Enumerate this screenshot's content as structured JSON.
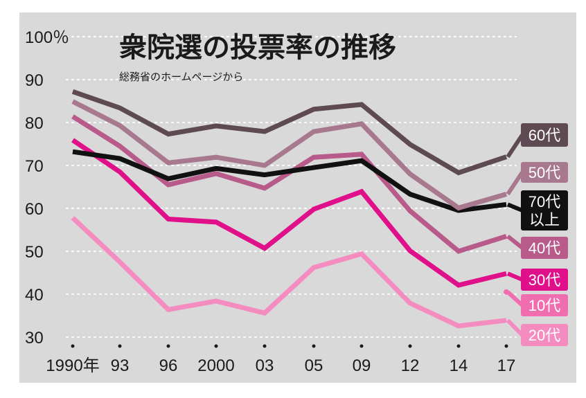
{
  "chart_data": {
    "type": "line",
    "title": "衆院選の投票率の推移",
    "subtitle": "総務省のホームページから",
    "x_tick_labels": [
      "1990年",
      "93",
      "96",
      "2000",
      "03",
      "05",
      "09",
      "12",
      "14",
      "17"
    ],
    "y_tick_labels": [
      "100％",
      "90",
      "80",
      "70",
      "60",
      "50",
      "40",
      "30"
    ],
    "ylim": [
      30,
      100
    ],
    "grid": true,
    "background": "#d9d9d9",
    "series": [
      {
        "name": "60代",
        "color": "#5e4a52",
        "values": [
          87.2,
          83.4,
          77.3,
          79.2,
          77.9,
          83.1,
          84.2,
          74.9,
          68.3,
          72.0
        ]
      },
      {
        "name": "50代",
        "color": "#a8788f",
        "values": [
          84.9,
          79.3,
          70.6,
          71.9,
          70.0,
          77.9,
          79.7,
          68.0,
          60.1,
          63.3
        ]
      },
      {
        "name": "70代以上",
        "color": "#111111",
        "values": [
          73.2,
          71.6,
          66.9,
          69.3,
          67.8,
          69.5,
          71.1,
          63.3,
          59.5,
          60.9
        ]
      },
      {
        "name": "40代",
        "color": "#b85a8a",
        "values": [
          81.4,
          74.5,
          65.5,
          68.1,
          64.7,
          71.9,
          72.6,
          59.4,
          50.0,
          53.5
        ]
      },
      {
        "name": "30代",
        "color": "#e0108a",
        "values": [
          75.9,
          68.5,
          57.5,
          56.8,
          50.7,
          59.8,
          63.9,
          50.1,
          42.1,
          44.8
        ]
      },
      {
        "name": "10代",
        "color": "#f06eb0",
        "values": [
          null,
          null,
          null,
          null,
          null,
          null,
          null,
          null,
          null,
          40.5
        ]
      },
      {
        "name": "20代",
        "color": "#f58cc0",
        "values": [
          57.8,
          47.5,
          36.4,
          38.4,
          35.6,
          46.2,
          49.4,
          37.9,
          32.6,
          33.9
        ]
      }
    ],
    "end_labels": [
      {
        "lines": [
          "60代"
        ],
        "color": "#5e4a52"
      },
      {
        "lines": [
          "50代"
        ],
        "color": "#a8788f"
      },
      {
        "lines": [
          "70代",
          "以上"
        ],
        "color": "#111111"
      },
      {
        "lines": [
          "40代"
        ],
        "color": "#b85a8a"
      },
      {
        "lines": [
          "30代"
        ],
        "color": "#e0108a"
      },
      {
        "lines": [
          "10代"
        ],
        "color": "#f06eb0"
      },
      {
        "lines": [
          "20代"
        ],
        "color": "#f58cc0"
      }
    ]
  }
}
